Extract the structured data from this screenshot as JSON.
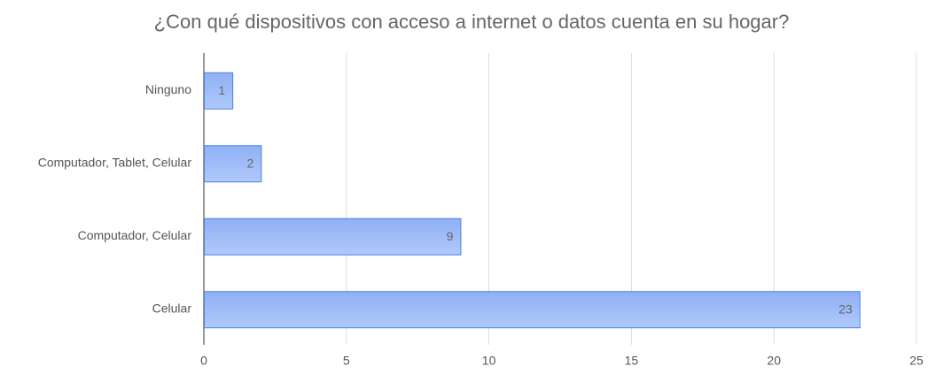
{
  "chart_data": {
    "type": "hbar",
    "title": "¿Con qué dispositivos con acceso a internet o datos cuenta en su hogar?",
    "categories": [
      "Ninguno",
      "Computador, Tablet, Celular",
      "Computador, Celular",
      "Celular"
    ],
    "values": [
      1,
      2,
      9,
      23
    ],
    "color": "#4a80e8",
    "xlim": [
      0,
      25
    ],
    "xticks": [
      0,
      5,
      10,
      15,
      20,
      25
    ],
    "grid": true
  }
}
